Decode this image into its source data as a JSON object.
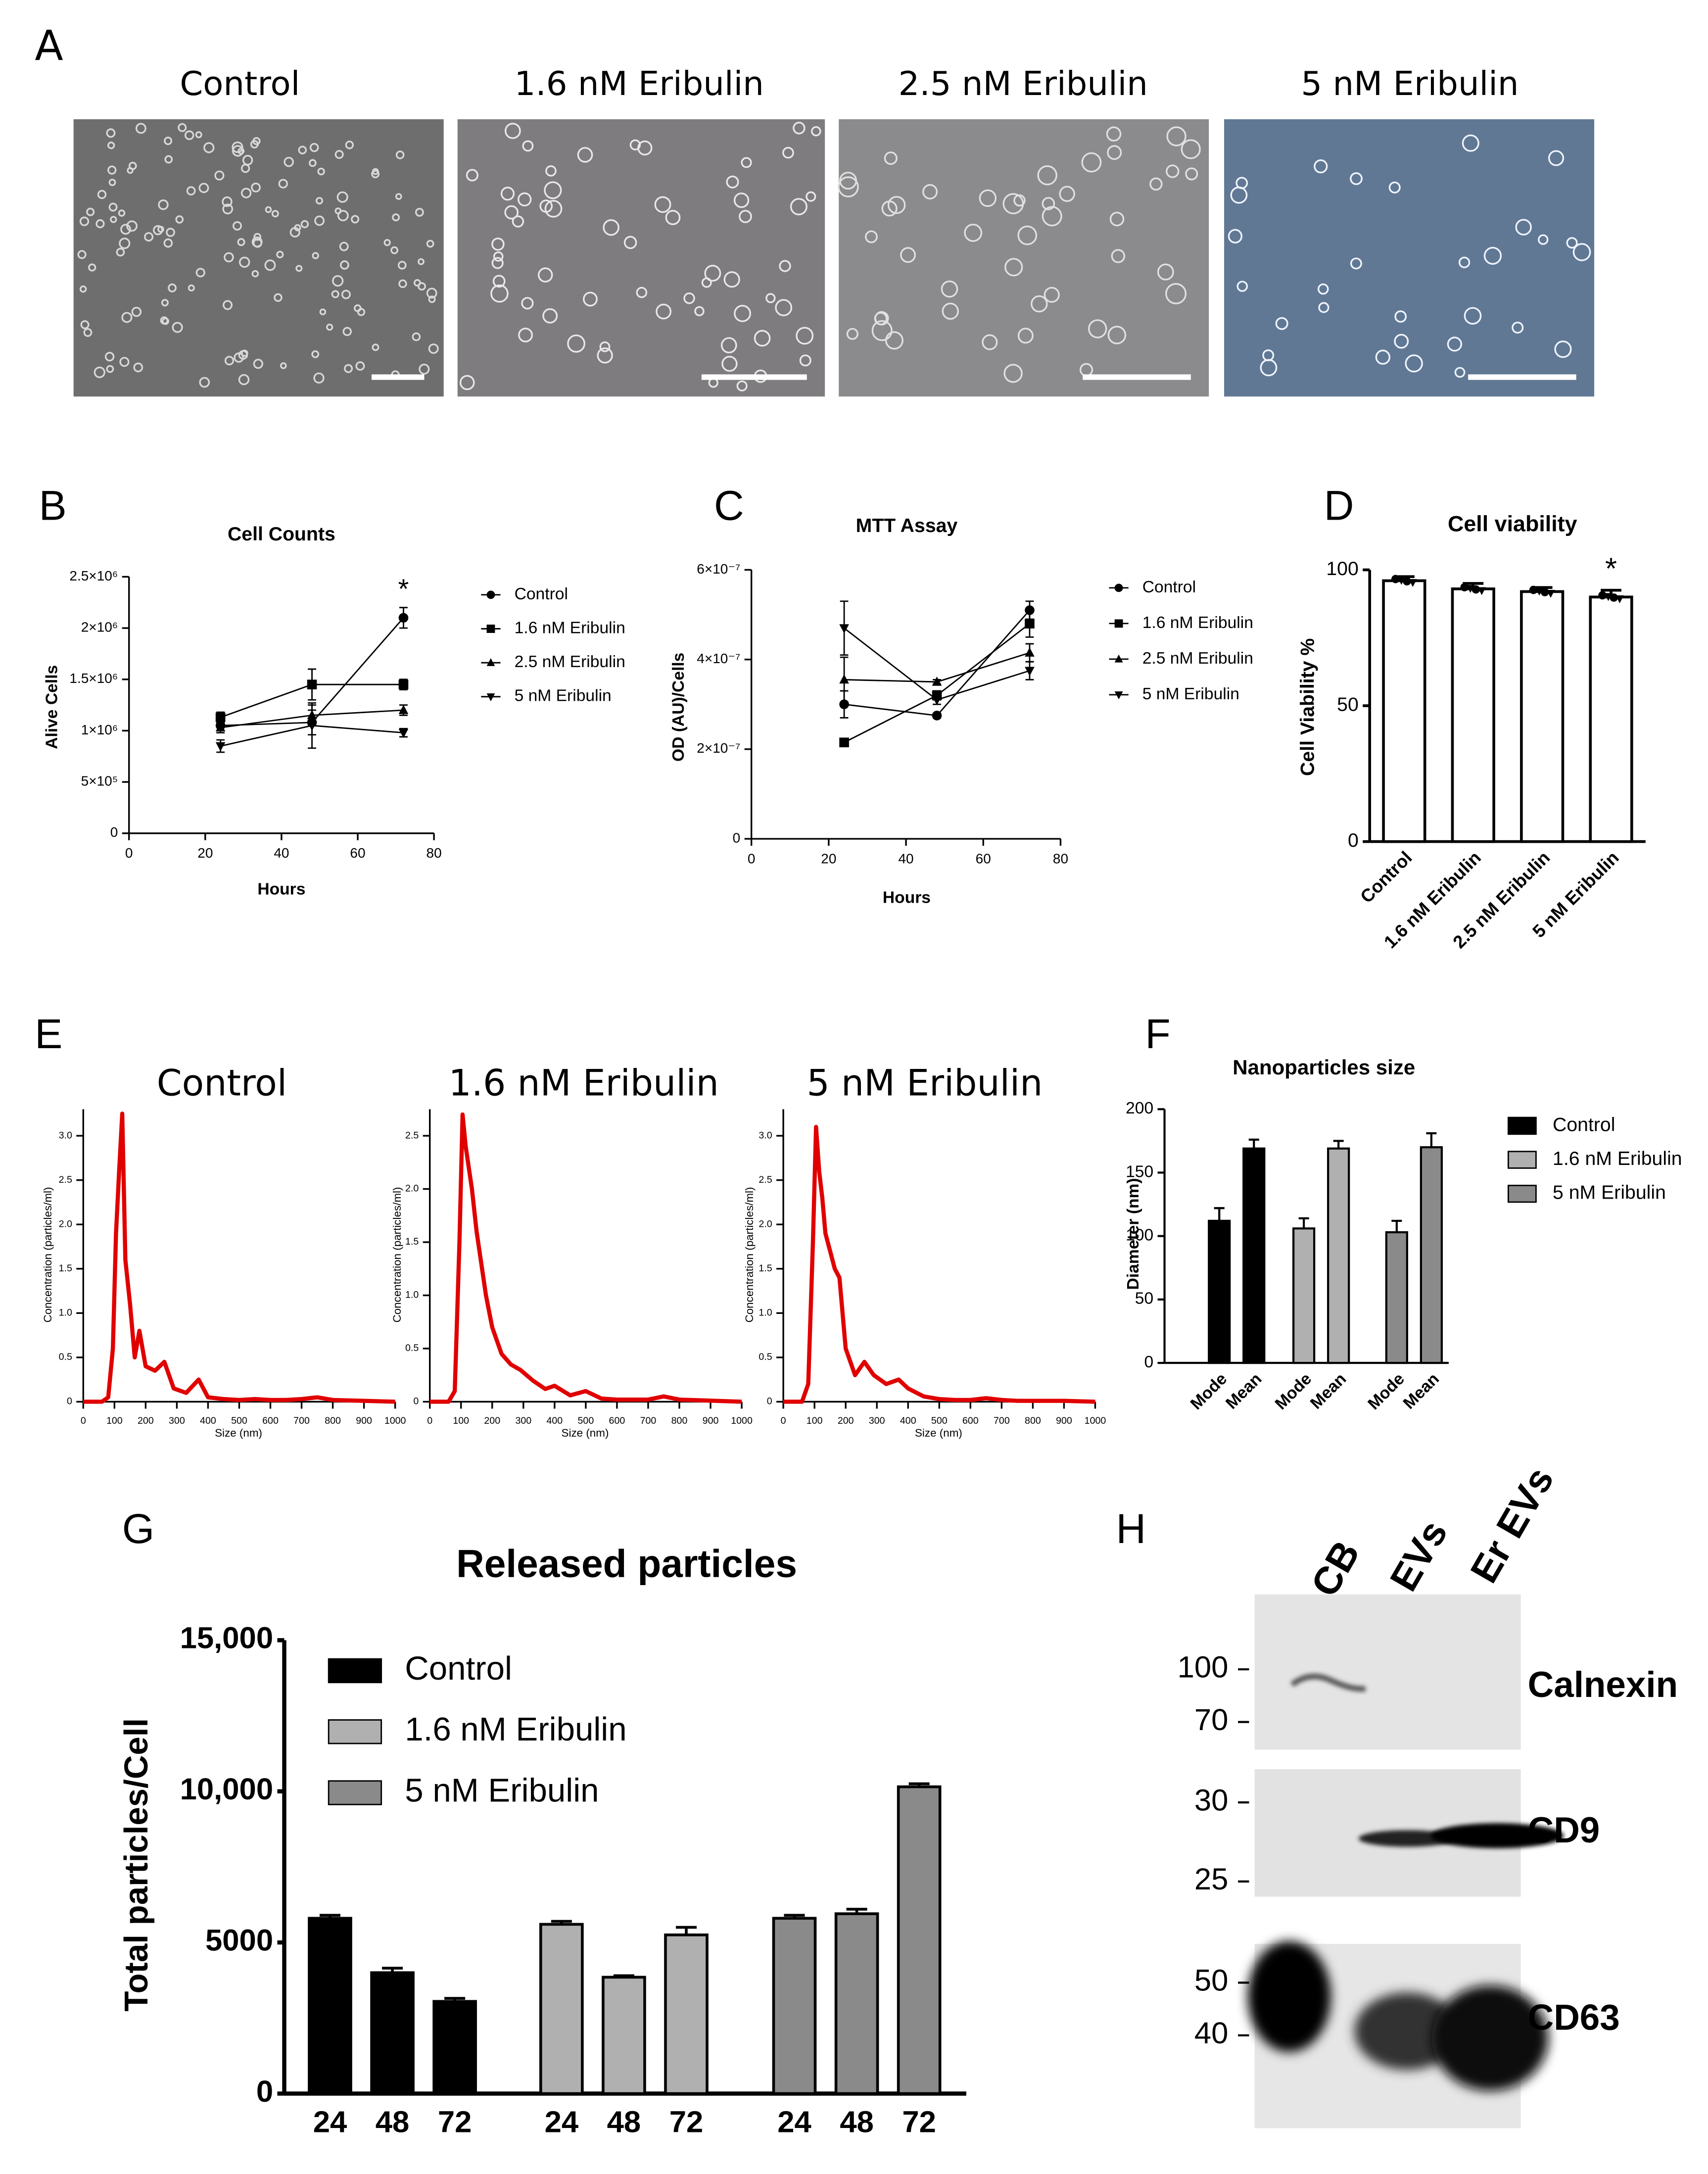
{
  "panel_letters": [
    "A",
    "B",
    "C",
    "D",
    "E",
    "F",
    "G",
    "H"
  ],
  "micrographs": {
    "labels": [
      "Control",
      "1.6 nM Eribulin",
      "2.5 nM Eribulin",
      "5 nM Eribulin"
    ]
  },
  "chart_data": [
    {
      "type": "line",
      "title": "Cell Counts",
      "x_label": "Hours",
      "y_label": "Alive Cells",
      "x": [
        24,
        48,
        72
      ],
      "xlim": [
        0,
        80
      ],
      "xticks": [
        0,
        20,
        40,
        60,
        80
      ],
      "ylim": [
        0,
        2500000
      ],
      "yticks": [
        0,
        {
          "value": 500000,
          "label": "5×10⁵"
        },
        {
          "value": 1000000,
          "label": "1×10⁶"
        },
        {
          "value": 1500000,
          "label": "1.5×10⁶"
        },
        {
          "value": 2000000,
          "label": "2×10⁶"
        },
        {
          "value": 2500000,
          "label": "2.5×10⁶"
        }
      ],
      "legend": "right",
      "series": [
        {
          "name": "Control",
          "color": "#000000",
          "marker": "circle",
          "values": [
            1050000,
            1080000,
            2100000
          ],
          "errors": [
            50000,
            120000,
            100000
          ]
        },
        {
          "name": "1.6 nM Eribulin",
          "color": "#000000",
          "marker": "square",
          "values": [
            1130000,
            1450000,
            1450000
          ],
          "errors": [
            50000,
            150000,
            50000
          ]
        },
        {
          "name": "2.5 nM Eribulin",
          "color": "#000000",
          "marker": "triangle-up",
          "values": [
            1030000,
            1150000,
            1200000
          ],
          "errors": [
            50000,
            100000,
            50000
          ]
        },
        {
          "name": "5 nM Eribulin",
          "color": "#000000",
          "marker": "triangle-down",
          "values": [
            850000,
            1050000,
            980000
          ],
          "errors": [
            60000,
            220000,
            40000
          ]
        }
      ],
      "annotations": [
        {
          "text": "*",
          "x": 72
        }
      ]
    },
    {
      "type": "line",
      "title": "MTT Assay",
      "x_label": "Hours",
      "y_label": "OD (AU)/Cells",
      "x": [
        24,
        48,
        72
      ],
      "xlim": [
        0,
        80
      ],
      "xticks": [
        0,
        20,
        40,
        60,
        80
      ],
      "ylim": [
        0,
        6e-07
      ],
      "yticks": [
        0,
        {
          "value": 2e-07,
          "label": "2×10⁻⁷"
        },
        {
          "value": 4e-07,
          "label": "4×10⁻⁷"
        },
        {
          "value": 6e-07,
          "label": "6×10⁻⁷"
        }
      ],
      "legend": "right",
      "series": [
        {
          "name": "Control",
          "color": "#000000",
          "marker": "circle",
          "values": [
            3e-07,
            2.75e-07,
            5.1e-07
          ],
          "errors": [
            3e-08,
            5e-09,
            2e-08
          ]
        },
        {
          "name": "1.6 nM Eribulin",
          "color": "#000000",
          "marker": "square",
          "values": [
            2.15e-07,
            3.2e-07,
            4.8e-07
          ],
          "errors": [
            5e-09,
            1e-08,
            3e-08
          ]
        },
        {
          "name": "2.5 nM Eribulin",
          "color": "#000000",
          "marker": "triangle-up",
          "values": [
            3.55e-07,
            3.5e-07,
            4.15e-07
          ],
          "errors": [
            5e-08,
            5e-09,
            2e-08
          ]
        },
        {
          "name": "5 nM Eribulin",
          "color": "#000000",
          "marker": "triangle-down",
          "values": [
            4.7e-07,
            3.1e-07,
            3.75e-07
          ],
          "errors": [
            6e-08,
            1e-08,
            2e-08
          ]
        }
      ]
    },
    {
      "type": "bar",
      "title": "Cell viability",
      "y_label": "Cell Viability %",
      "categories": [
        "Control",
        "1.6 nM Eribulin",
        "2.5 nM Eribulin",
        "5 nM Eribulin"
      ],
      "values": [
        96,
        93,
        92,
        90
      ],
      "errors": [
        1.5,
        2,
        1.5,
        2.5
      ],
      "color": "#ffffff",
      "ylim": [
        0,
        100
      ],
      "yticks": [
        0,
        50,
        100
      ],
      "annotations": [
        {
          "text": "*",
          "category": "5 nM Eribulin"
        }
      ]
    },
    {
      "type": "line",
      "title": "Control",
      "x_label": "Size (nm)",
      "y_label": "Concentration (particles/ml)",
      "color": "#e00000",
      "x": [
        0,
        60,
        80,
        95,
        105,
        115,
        125,
        135,
        150,
        165,
        180,
        200,
        230,
        260,
        290,
        330,
        370,
        400,
        450,
        500,
        550,
        600,
        650,
        700,
        750,
        800,
        900,
        1000
      ],
      "values": [
        0,
        0,
        0.05,
        0.6,
        1.9,
        2.6,
        3.25,
        1.6,
        1.1,
        0.5,
        0.8,
        0.4,
        0.35,
        0.45,
        0.15,
        0.1,
        0.25,
        0.05,
        0.03,
        0.02,
        0.03,
        0.02,
        0.02,
        0.03,
        0.05,
        0.02,
        0.01,
        0
      ],
      "xlim": [
        0,
        1000
      ],
      "xticks": [
        0,
        100,
        200,
        300,
        400,
        500,
        600,
        700,
        800,
        900,
        1000
      ],
      "ylim": [
        0,
        3.3
      ],
      "yticks": [
        0,
        0.5,
        {
          "value": 1,
          "label": "1.0"
        },
        1.5,
        {
          "value": 2,
          "label": "2.0"
        },
        2.5,
        {
          "value": 3,
          "label": "3.0"
        }
      ]
    },
    {
      "type": "line",
      "title": "1.6 nM Eribulin",
      "x_label": "Size (nm)",
      "y_label": "Concentration (particles/ml)",
      "color": "#e00000",
      "x": [
        0,
        60,
        80,
        95,
        105,
        115,
        125,
        135,
        150,
        165,
        180,
        200,
        230,
        260,
        290,
        330,
        370,
        400,
        450,
        500,
        550,
        600,
        650,
        700,
        750,
        800,
        900,
        1000
      ],
      "values": [
        0,
        0,
        0.1,
        1.5,
        2.7,
        2.4,
        2.2,
        2.0,
        1.6,
        1.3,
        1.0,
        0.7,
        0.45,
        0.35,
        0.3,
        0.2,
        0.12,
        0.15,
        0.06,
        0.1,
        0.03,
        0.02,
        0.02,
        0.02,
        0.05,
        0.02,
        0.01,
        0
      ],
      "xlim": [
        0,
        1000
      ],
      "xticks": [
        0,
        100,
        200,
        300,
        400,
        500,
        600,
        700,
        800,
        900,
        1000
      ],
      "ylim": [
        0,
        2.75
      ],
      "yticks": [
        0,
        0.5,
        {
          "value": 1,
          "label": "1.0"
        },
        1.5,
        {
          "value": 2,
          "label": "2.0"
        },
        2.5
      ]
    },
    {
      "type": "line",
      "title": "5 nM Eribulin",
      "x_label": "Size (nm)",
      "y_label": "Concentration (particles/ml)",
      "color": "#e00000",
      "x": [
        0,
        60,
        80,
        95,
        105,
        115,
        125,
        135,
        150,
        165,
        180,
        200,
        230,
        260,
        290,
        330,
        370,
        400,
        450,
        500,
        550,
        600,
        650,
        700,
        750,
        800,
        900,
        1000
      ],
      "values": [
        0,
        0,
        0.2,
        1.8,
        3.1,
        2.6,
        2.3,
        1.9,
        1.7,
        1.5,
        1.4,
        0.6,
        0.3,
        0.45,
        0.3,
        0.2,
        0.25,
        0.15,
        0.06,
        0.03,
        0.02,
        0.02,
        0.04,
        0.02,
        0.01,
        0.01,
        0.01,
        0
      ],
      "xlim": [
        0,
        1000
      ],
      "xticks": [
        0,
        100,
        200,
        300,
        400,
        500,
        600,
        700,
        800,
        900,
        1000
      ],
      "ylim": [
        0,
        3.3
      ],
      "yticks": [
        0,
        0.5,
        {
          "value": 1,
          "label": "1.0"
        },
        1.5,
        {
          "value": 2,
          "label": "2.0"
        },
        2.5,
        {
          "value": 3,
          "label": "3.0"
        }
      ]
    },
    {
      "type": "bar",
      "title": "Nanoparticles size",
      "y_label": "Diameter (nm)",
      "categories": [
        "Mode",
        "Mean"
      ],
      "legend": "right",
      "series": [
        {
          "name": "Control",
          "color": "#000000",
          "values": [
            112,
            169
          ],
          "errors": [
            10,
            7
          ]
        },
        {
          "name": "1.6 nM Eribulin",
          "color": "#b0b0b0",
          "values": [
            106,
            169
          ],
          "errors": [
            8,
            6
          ]
        },
        {
          "name": "5 nM Eribulin",
          "color": "#8a8a8a",
          "values": [
            103,
            170
          ],
          "errors": [
            9,
            11
          ]
        }
      ],
      "ylim": [
        0,
        200
      ],
      "yticks": [
        0,
        50,
        100,
        150,
        200
      ]
    },
    {
      "type": "bar",
      "title": "Released particles",
      "y_label": "Total particles/Cell",
      "categories": [
        "24",
        "48",
        "72"
      ],
      "legend": "top-left",
      "series": [
        {
          "name": "Control",
          "color": "#000000",
          "values": [
            5800,
            4000,
            3050
          ],
          "errors": [
            100,
            150,
            100
          ]
        },
        {
          "name": "1.6 nM Eribulin",
          "color": "#b0b0b0",
          "values": [
            5600,
            3850,
            5250
          ],
          "errors": [
            100,
            50,
            250
          ]
        },
        {
          "name": "5 nM Eribulin",
          "color": "#8a8a8a",
          "values": [
            5800,
            5950,
            10150
          ],
          "errors": [
            100,
            150,
            100
          ]
        }
      ],
      "ylim": [
        0,
        15000
      ],
      "yticks": [
        0,
        5000,
        {
          "value": 10000,
          "label": "10,000"
        },
        {
          "value": 15000,
          "label": "15,000"
        }
      ]
    }
  ],
  "blot": {
    "lanes": [
      "CB",
      "EVs",
      "Er EVs"
    ],
    "proteins": [
      {
        "name": "Calnexin",
        "markers": [
          100,
          70
        ]
      },
      {
        "name": "CD9",
        "markers": [
          30,
          25
        ]
      },
      {
        "name": "CD63",
        "markers": [
          50,
          40
        ]
      }
    ]
  }
}
